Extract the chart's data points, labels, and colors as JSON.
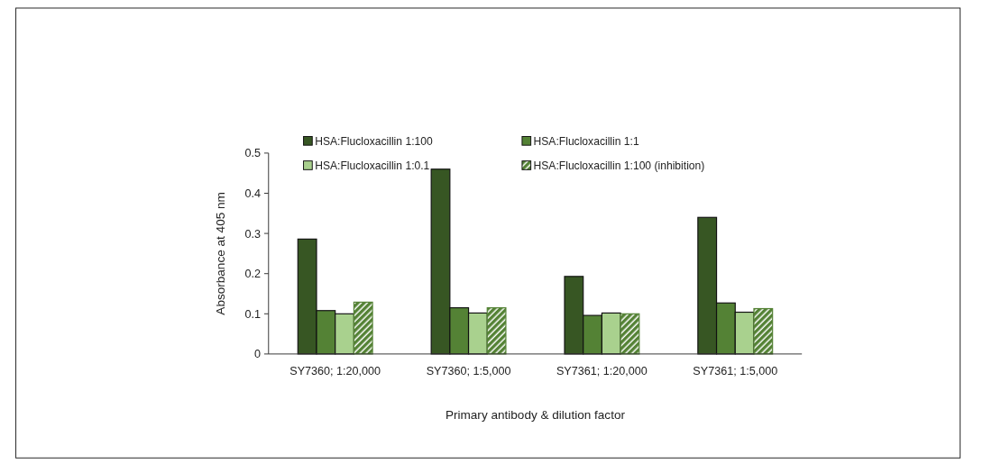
{
  "chart_data": {
    "type": "bar",
    "xlabel": "Primary antibody & dilution factor",
    "ylabel": "Absorbance at 405 nm",
    "categories": [
      "SY7360; 1:20,000",
      "SY7360; 1:5,000",
      "SY7361; 1:20,000",
      "SY7361; 1:5,000"
    ],
    "series": [
      {
        "name": "HSA:Flucloxacillin 1:100",
        "color": "#375623",
        "values": [
          0.286,
          0.46,
          0.193,
          0.34
        ]
      },
      {
        "name": "HSA:Flucloxacillin 1:1",
        "color": "#548235",
        "values": [
          0.108,
          0.115,
          0.096,
          0.127
        ]
      },
      {
        "name": "HSA:Flucloxacillin 1:0.1",
        "color": "#a9d18e",
        "values": [
          0.1,
          0.102,
          0.102,
          0.104
        ]
      },
      {
        "name": "HSA:Flucloxacillin 1:100 (inhibition)",
        "color": "#548235",
        "values": [
          0.129,
          0.115,
          0.1,
          0.113
        ]
      }
    ],
    "ylim": [
      0,
      0.5
    ],
    "yticks": [
      0,
      0.1,
      0.2,
      0.3,
      0.4,
      0.5
    ],
    "grid": false,
    "legend": "top"
  }
}
